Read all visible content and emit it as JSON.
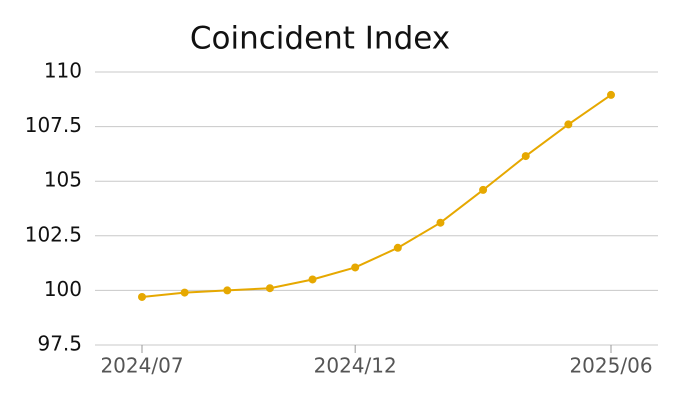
{
  "chart_data": {
    "type": "line",
    "title": "Coincident Index",
    "categories": [
      "2024/07",
      null,
      null,
      null,
      null,
      "2024/12",
      null,
      null,
      null,
      null,
      null,
      "2025/06"
    ],
    "values": [
      99.7,
      99.9,
      100.0,
      100.1,
      100.5,
      101.05,
      101.95,
      103.1,
      104.6,
      106.15,
      107.6,
      108.95
    ],
    "color": "#e6a800",
    "ylim": [
      97.5,
      110
    ],
    "yticks": [
      97.5,
      100,
      102.5,
      105,
      107.5,
      110
    ],
    "grid": true
  }
}
